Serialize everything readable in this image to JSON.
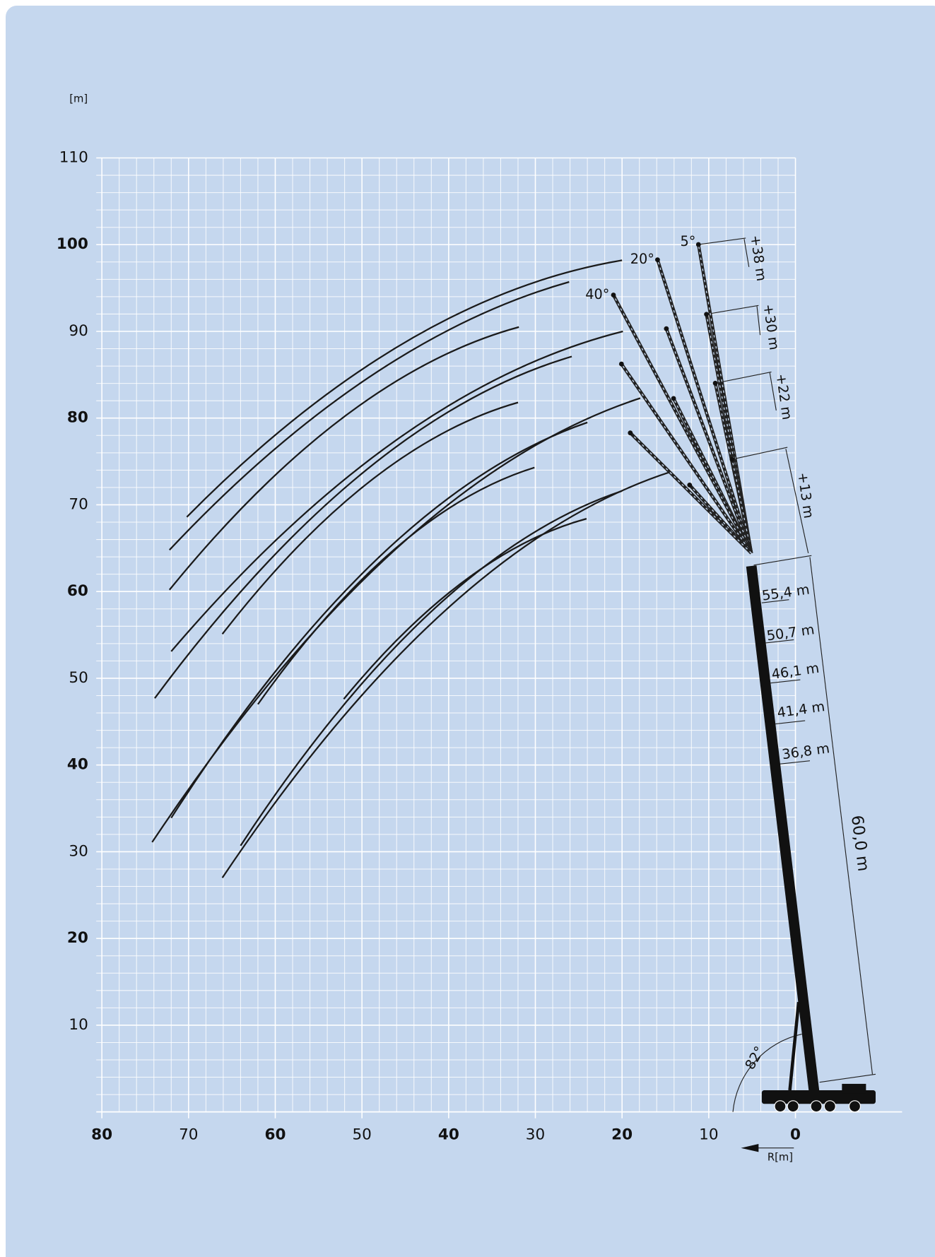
{
  "chart_data": {
    "type": "line",
    "y_label": "[m]",
    "x_label": "R[m]",
    "xlim": [
      80,
      0
    ],
    "ylim": [
      0,
      110
    ],
    "xticks": [
      80,
      70,
      60,
      50,
      40,
      30,
      20,
      10,
      0
    ],
    "yticks": [
      10,
      20,
      30,
      40,
      50,
      60,
      70,
      80,
      90,
      100,
      110
    ],
    "grid": true,
    "color": "#1a1a1a",
    "series": [
      {
        "x": [
          70.2,
          45.1,
          20.0
        ],
        "values": [
          68.6,
          88.7,
          98.2
        ]
      },
      {
        "x": [
          72.2,
          49.2,
          26.1
        ],
        "values": [
          64.8,
          84.7,
          95.7
        ]
      },
      {
        "x": [
          72.2,
          52.0,
          31.9
        ],
        "values": [
          60.2,
          80.2,
          90.5
        ]
      },
      {
        "x": [
          72.0,
          46.0,
          19.9
        ],
        "values": [
          53.1,
          77.5,
          90.0
        ]
      },
      {
        "x": [
          73.9,
          49.9,
          25.8
        ],
        "values": [
          47.7,
          73.7,
          87.1
        ]
      },
      {
        "x": [
          66.1,
          49.1,
          32.0
        ],
        "values": [
          55.1,
          72.7,
          81.8
        ]
      },
      {
        "x": [
          74.2,
          46.1,
          17.9
        ],
        "values": [
          31.1,
          64.9,
          82.3
        ]
      },
      {
        "x": [
          72.0,
          48.0,
          24.0
        ],
        "values": [
          33.9,
          64.0,
          79.5
        ]
      },
      {
        "x": [
          62.0,
          46.1,
          30.1
        ],
        "values": [
          47.0,
          65.0,
          74.3
        ]
      },
      {
        "x": [
          66.1,
          40.3,
          14.4
        ],
        "values": [
          27.0,
          57.9,
          73.8
        ]
      },
      {
        "x": [
          64.0,
          42.0,
          20.0
        ],
        "values": [
          30.7,
          57.7,
          71.6
        ]
      },
      {
        "x": [
          52.1,
          38.1,
          24.1
        ],
        "values": [
          47.6,
          61.3,
          68.4
        ]
      }
    ],
    "annotations": [
      "5°",
      "20°",
      "40°",
      "82°",
      "+38 m",
      "+30 m",
      "+22 m",
      "+13 m",
      "55,4 m",
      "50,7 m",
      "46,1 m",
      "41,4 m",
      "36,8 m",
      "60,0 m"
    ]
  }
}
